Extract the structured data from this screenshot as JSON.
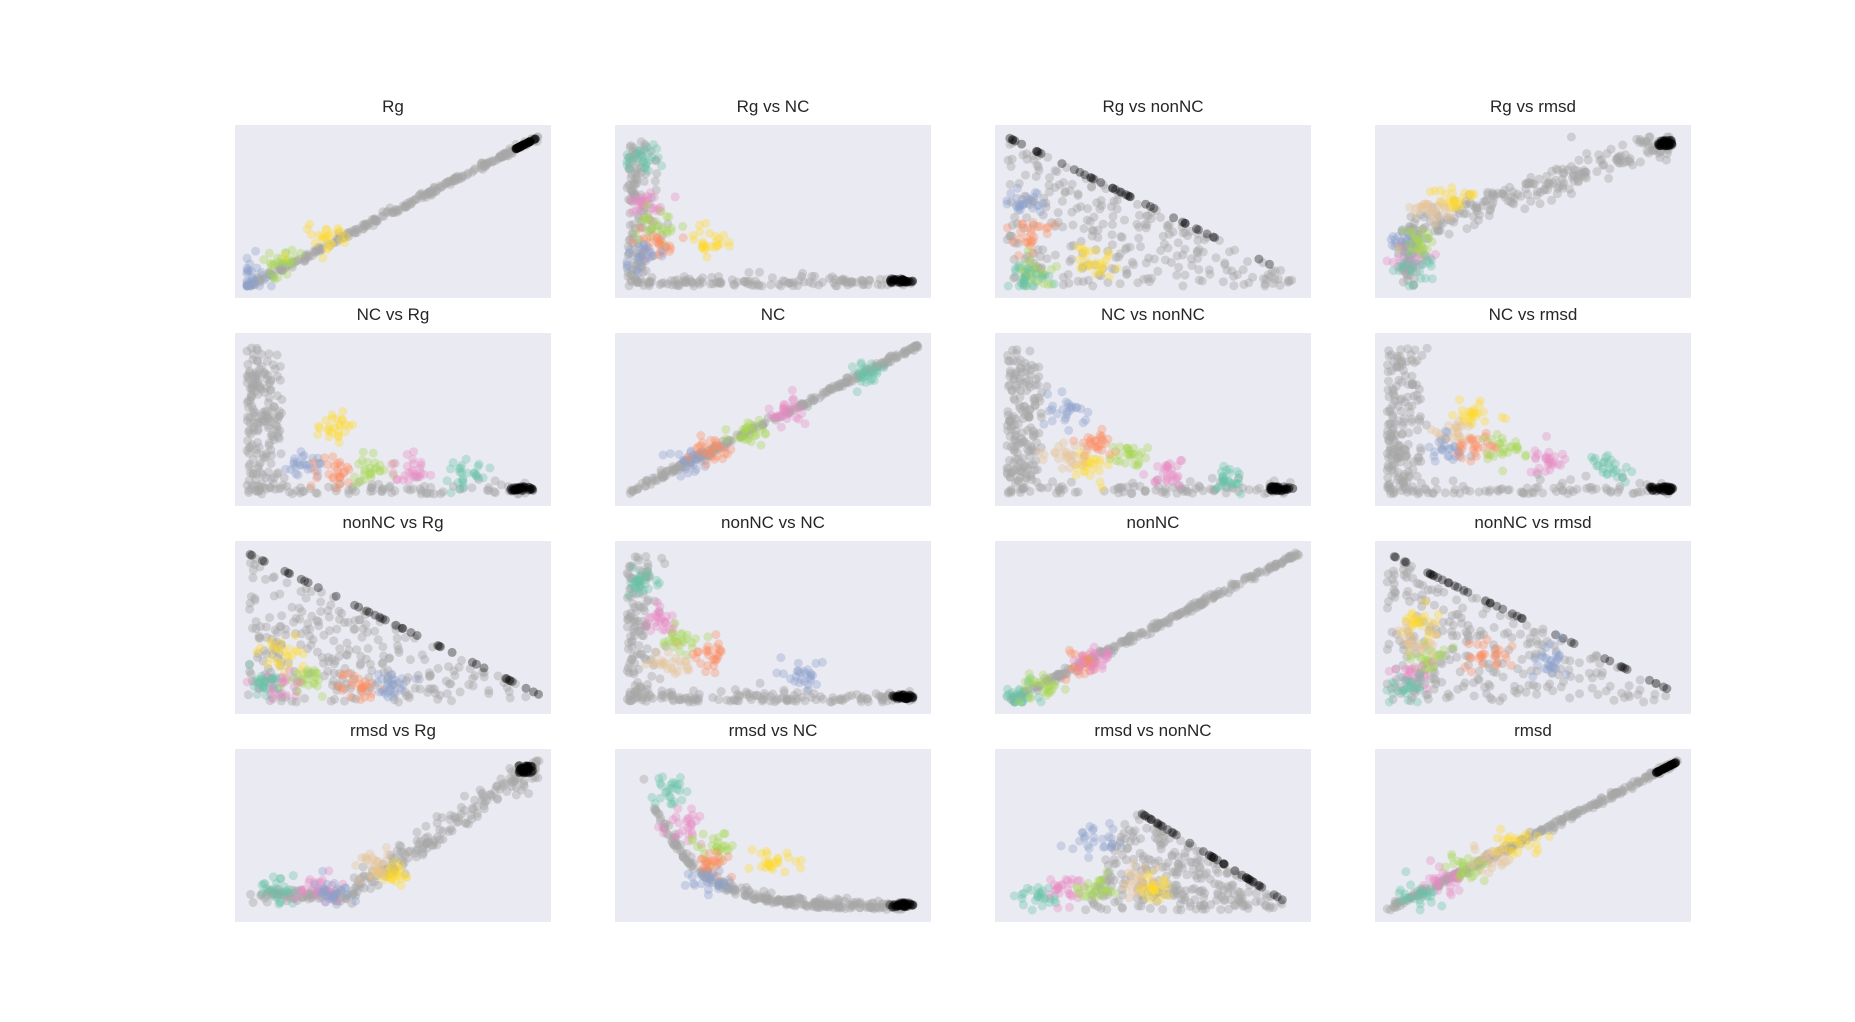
{
  "figure": {
    "background": "#ffffff",
    "axes_facecolor": "#eaeaf2",
    "point_alpha": 0.18,
    "grid": false,
    "axes_visible": false
  },
  "colors": {
    "gray": "#a8a8a8",
    "black": "#000000",
    "blue": "#8da0cb",
    "orange": "#fc8d62",
    "green": "#a6d854",
    "pink": "#e78ac3",
    "yellow": "#ffd92f",
    "teal": "#66c2a5",
    "tan": "#e5c494"
  },
  "chart_data": [
    {
      "title": "Rg",
      "type": "scatter",
      "pattern": "diagonal",
      "highlight": "black-top",
      "clusters": [
        [
          "blue",
          0.02,
          0.08
        ],
        [
          "green",
          0.12,
          0.16
        ],
        [
          "yellow",
          0.28,
          0.32
        ]
      ]
    },
    {
      "title": "Rg vs NC",
      "type": "scatter",
      "pattern": "L-shape",
      "clusters": [
        [
          "teal",
          0.06,
          0.85
        ],
        [
          "pink",
          0.07,
          0.55
        ],
        [
          "green",
          0.1,
          0.4
        ],
        [
          "orange",
          0.1,
          0.3
        ],
        [
          "yellow",
          0.28,
          0.3
        ],
        [
          "blue",
          0.05,
          0.2
        ]
      ]
    },
    {
      "title": "Rg vs nonNC",
      "type": "scatter",
      "pattern": "triangle",
      "clusters": [
        [
          "blue",
          0.05,
          0.55
        ],
        [
          "orange",
          0.08,
          0.35
        ],
        [
          "yellow",
          0.3,
          0.15
        ],
        [
          "green",
          0.1,
          0.1
        ],
        [
          "teal",
          0.08,
          0.06
        ]
      ]
    },
    {
      "title": "Rg vs rmsd",
      "type": "scatter",
      "pattern": "elbow-up",
      "clusters": [
        [
          "yellow",
          0.22,
          0.58
        ],
        [
          "tan",
          0.15,
          0.52
        ],
        [
          "blue",
          0.06,
          0.3
        ],
        [
          "pink",
          0.09,
          0.2
        ],
        [
          "green",
          0.11,
          0.3
        ],
        [
          "teal",
          0.1,
          0.12
        ]
      ]
    },
    {
      "title": "NC vs Rg",
      "type": "scatter",
      "pattern": "L-shape-wide",
      "clusters": [
        [
          "yellow",
          0.3,
          0.45
        ],
        [
          "blue",
          0.2,
          0.18
        ],
        [
          "orange",
          0.3,
          0.15
        ],
        [
          "green",
          0.42,
          0.16
        ],
        [
          "pink",
          0.55,
          0.14
        ],
        [
          "teal",
          0.75,
          0.14
        ]
      ]
    },
    {
      "title": "NC",
      "type": "scatter",
      "pattern": "diagonal",
      "clusters": [
        [
          "blue",
          0.22,
          0.22
        ],
        [
          "orange",
          0.3,
          0.3
        ],
        [
          "green",
          0.42,
          0.42
        ],
        [
          "pink",
          0.55,
          0.55
        ],
        [
          "teal",
          0.82,
          0.82
        ]
      ]
    },
    {
      "title": "NC vs nonNC",
      "type": "scatter",
      "pattern": "L-shape-wide",
      "clusters": [
        [
          "blue",
          0.2,
          0.55
        ],
        [
          "yellow",
          0.28,
          0.18
        ],
        [
          "orange",
          0.3,
          0.35
        ],
        [
          "green",
          0.42,
          0.25
        ],
        [
          "tan",
          0.2,
          0.25
        ],
        [
          "pink",
          0.55,
          0.14
        ],
        [
          "teal",
          0.75,
          0.1
        ]
      ]
    },
    {
      "title": "NC vs rmsd",
      "type": "scatter",
      "pattern": "L-shape-wide",
      "clusters": [
        [
          "yellow",
          0.3,
          0.55
        ],
        [
          "tan",
          0.22,
          0.4
        ],
        [
          "blue",
          0.2,
          0.3
        ],
        [
          "orange",
          0.3,
          0.32
        ],
        [
          "green",
          0.4,
          0.3
        ],
        [
          "pink",
          0.55,
          0.22
        ],
        [
          "teal",
          0.75,
          0.2
        ]
      ]
    },
    {
      "title": "nonNC vs Rg",
      "type": "scatter",
      "pattern": "triangle-left",
      "clusters": [
        [
          "yellow",
          0.12,
          0.32
        ],
        [
          "green",
          0.2,
          0.15
        ],
        [
          "pink",
          0.1,
          0.12
        ],
        [
          "orange",
          0.38,
          0.1
        ],
        [
          "blue",
          0.5,
          0.12
        ],
        [
          "teal",
          0.06,
          0.12
        ]
      ]
    },
    {
      "title": "nonNC vs NC",
      "type": "scatter",
      "pattern": "L-shape",
      "clusters": [
        [
          "teal",
          0.05,
          0.8
        ],
        [
          "pink",
          0.12,
          0.55
        ],
        [
          "green",
          0.2,
          0.42
        ],
        [
          "orange",
          0.3,
          0.32
        ],
        [
          "tan",
          0.15,
          0.25
        ],
        [
          "blue",
          0.6,
          0.2
        ]
      ]
    },
    {
      "title": "nonNC",
      "type": "scatter",
      "pattern": "diagonal",
      "clusters": [
        [
          "teal",
          0.05,
          0.05
        ],
        [
          "green",
          0.12,
          0.12
        ],
        [
          "orange",
          0.26,
          0.26
        ],
        [
          "pink",
          0.3,
          0.3
        ]
      ]
    },
    {
      "title": "nonNC vs rmsd",
      "type": "scatter",
      "pattern": "triangle-left",
      "clusters": [
        [
          "yellow",
          0.12,
          0.52
        ],
        [
          "green",
          0.15,
          0.3
        ],
        [
          "tan",
          0.1,
          0.4
        ],
        [
          "orange",
          0.35,
          0.3
        ],
        [
          "blue",
          0.55,
          0.28
        ],
        [
          "pink",
          0.08,
          0.18
        ],
        [
          "teal",
          0.05,
          0.1
        ]
      ]
    },
    {
      "title": "rmsd vs Rg",
      "type": "scatter",
      "pattern": "elbow-right",
      "clusters": [
        [
          "teal",
          0.1,
          0.14
        ],
        [
          "pink",
          0.25,
          0.15
        ],
        [
          "blue",
          0.3,
          0.13
        ],
        [
          "yellow",
          0.5,
          0.25
        ],
        [
          "tan",
          0.45,
          0.3
        ]
      ]
    },
    {
      "title": "rmsd vs NC",
      "type": "scatter",
      "pattern": "L-shape-curve",
      "clusters": [
        [
          "teal",
          0.15,
          0.8
        ],
        [
          "pink",
          0.2,
          0.55
        ],
        [
          "green",
          0.3,
          0.42
        ],
        [
          "orange",
          0.3,
          0.3
        ],
        [
          "yellow",
          0.5,
          0.32
        ],
        [
          "blue",
          0.28,
          0.2
        ]
      ]
    },
    {
      "title": "rmsd vs nonNC",
      "type": "scatter",
      "pattern": "triangle-right",
      "clusters": [
        [
          "blue",
          0.3,
          0.45
        ],
        [
          "teal",
          0.1,
          0.08
        ],
        [
          "pink",
          0.2,
          0.12
        ],
        [
          "green",
          0.3,
          0.15
        ],
        [
          "tan",
          0.45,
          0.18
        ],
        [
          "yellow",
          0.5,
          0.14
        ]
      ]
    },
    {
      "title": "rmsd",
      "type": "scatter",
      "pattern": "diagonal",
      "highlight": "black-top",
      "clusters": [
        [
          "teal",
          0.1,
          0.1
        ],
        [
          "pink",
          0.2,
          0.2
        ],
        [
          "green",
          0.28,
          0.28
        ],
        [
          "tan",
          0.35,
          0.35
        ],
        [
          "yellow",
          0.45,
          0.45
        ]
      ]
    }
  ]
}
